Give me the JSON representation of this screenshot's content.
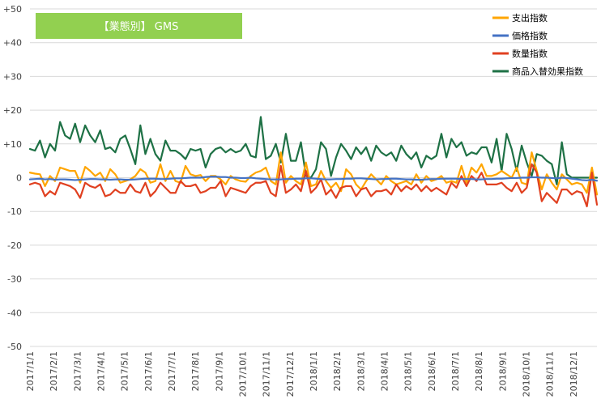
{
  "chart_data": {
    "type": "line",
    "title": "【業態別】 GMS",
    "title_bg": "#92d050",
    "ylim": [
      -50,
      50
    ],
    "y_ticks": [
      50,
      40,
      30,
      20,
      10,
      0,
      -10,
      -20,
      -30,
      -40,
      -50
    ],
    "y_tick_labels": [
      "+50",
      "+40",
      "+30",
      "+20",
      "+10",
      "0",
      "-10",
      "-20",
      "-30",
      "-40",
      "-50"
    ],
    "grid": true,
    "legend_position": "top-right",
    "x_tick_labels": [
      "2017/1/1",
      "2017/2/1",
      "2017/3/1",
      "2017/4/1",
      "2017/5/1",
      "2017/6/1",
      "2017/7/1",
      "2017/8/1",
      "2017/9/1",
      "2017/10/1",
      "2017/11/1",
      "2017/12/1",
      "2018/1/1",
      "2018/2/1",
      "2018/3/1",
      "2018/4/1",
      "2018/5/1",
      "2018/6/1",
      "2018/7/1",
      "2018/8/1",
      "2018/9/1",
      "2018/10/1",
      "2018/11/1",
      "2018/12/1"
    ],
    "series": [
      {
        "name": "支出指数",
        "color": "#ffa500",
        "values": [
          1.5,
          1.2,
          1.0,
          -2.5,
          0.5,
          -1.0,
          3.0,
          2.5,
          2.0,
          2.0,
          -1.5,
          3.2,
          2.0,
          0.5,
          1.5,
          -1.0,
          2.5,
          1.0,
          -1.5,
          -1.0,
          -0.5,
          0.5,
          2.5,
          1.5,
          -1.5,
          -1.0,
          4.0,
          -1.0,
          2.0,
          -1.0,
          -1.5,
          3.5,
          1.0,
          0.5,
          0.8,
          -1.0,
          0.5,
          0.5,
          -0.5,
          -2.0,
          0.5,
          -0.5,
          -1.0,
          -1.2,
          0.5,
          1.5,
          2.0,
          3.0,
          -1.0,
          -2.0,
          7.5,
          -1.5,
          0.5,
          -1.0,
          -2.0,
          4.5,
          -2.5,
          -2.0,
          2.0,
          -1.0,
          -3.0,
          -1.5,
          -4.0,
          2.5,
          1.0,
          -2.0,
          -3.5,
          -1.0,
          1.0,
          -0.5,
          -2.0,
          0.5,
          -1.0,
          -2.0,
          -1.5,
          -1.0,
          -2.0,
          1.0,
          -1.5,
          0.5,
          -1.0,
          -0.5,
          0.5,
          -1.5,
          -1.0,
          -1.5,
          3.5,
          -1.5,
          3.0,
          1.5,
          4.0,
          0.5,
          0.5,
          1.0,
          2.0,
          1.0,
          0.0,
          3.0,
          -1.5,
          -2.0,
          7.5,
          2.0,
          -3.5,
          1.0,
          -1.5,
          -3.5,
          1.0,
          -0.5,
          -2.0,
          -1.5,
          -2.0,
          -4.5,
          3.0,
          -5.0
        ],
        "dates_note": "weekly"
      },
      {
        "name": "価格指数",
        "color": "#4472c4",
        "values": [
          -0.5,
          -0.4,
          -0.3,
          -0.5,
          -0.4,
          -0.6,
          -0.5,
          -0.5,
          -0.6,
          -0.7,
          -0.6,
          -0.5,
          -0.4,
          -0.4,
          -0.5,
          -0.5,
          -0.6,
          -0.5,
          -0.5,
          -0.6,
          -0.6,
          -0.5,
          -0.4,
          -0.3,
          -0.3,
          -0.3,
          -0.4,
          -0.4,
          -0.3,
          -0.2,
          -0.2,
          -0.1,
          0.0,
          0.0,
          0.0,
          0.2,
          0.3,
          0.3,
          0.2,
          0.2,
          0.0,
          0.0,
          -0.1,
          -0.1,
          0.0,
          -0.2,
          -0.3,
          -0.4,
          -0.5,
          -0.5,
          -0.5,
          -0.4,
          -0.4,
          -0.3,
          -0.3,
          -0.2,
          -0.2,
          -0.3,
          -0.4,
          -0.5,
          -0.5,
          -0.4,
          -0.4,
          -0.3,
          -0.3,
          -0.2,
          -0.2,
          -0.3,
          -0.4,
          -0.5,
          -0.4,
          -0.4,
          -0.3,
          -0.3,
          -0.4,
          -0.5,
          -0.5,
          -0.6,
          -0.6,
          -0.5,
          -0.4,
          -0.4,
          -0.3,
          -0.3,
          -0.3,
          -0.3,
          -0.4,
          -0.4,
          -0.4,
          -0.5,
          -0.5,
          -0.4,
          -0.4,
          -0.3,
          -0.3,
          -0.2,
          -0.1,
          -0.1,
          0.0,
          0.0,
          0.1,
          0.1,
          0.0,
          0.0,
          -0.1,
          -0.2,
          0.0,
          -0.1,
          -0.3,
          -0.5,
          -0.7,
          -0.8,
          -0.6,
          -0.9
        ]
      },
      {
        "name": "数量指数",
        "color": "#e04020",
        "values": [
          -2.0,
          -1.5,
          -2.0,
          -5.5,
          -4.0,
          -5.0,
          -1.5,
          -2.0,
          -2.5,
          -3.5,
          -6.0,
          -1.5,
          -2.5,
          -3.0,
          -2.0,
          -5.5,
          -5.0,
          -3.5,
          -4.5,
          -4.5,
          -2.0,
          -4.0,
          -4.5,
          -1.5,
          -5.5,
          -4.0,
          -1.5,
          -3.0,
          -4.5,
          -4.5,
          -1.0,
          -2.5,
          -2.5,
          -2.0,
          -4.5,
          -4.0,
          -3.0,
          -3.0,
          -1.0,
          -5.5,
          -3.0,
          -3.5,
          -4.0,
          -4.5,
          -2.5,
          -1.5,
          -1.5,
          -1.0,
          -4.5,
          -5.5,
          3.5,
          -4.5,
          -3.5,
          -2.0,
          -4.0,
          2.0,
          -4.5,
          -3.0,
          -0.5,
          -5.0,
          -3.5,
          -6.0,
          -3.0,
          -2.5,
          -2.5,
          -5.5,
          -3.5,
          -3.0,
          -5.5,
          -4.0,
          -4.0,
          -3.5,
          -5.0,
          -2.0,
          -4.0,
          -2.5,
          -3.5,
          -2.0,
          -4.0,
          -2.5,
          -4.0,
          -3.0,
          -4.0,
          -5.0,
          -1.5,
          -3.0,
          0.5,
          -2.5,
          0.5,
          -1.0,
          1.5,
          -2.0,
          -2.0,
          -2.0,
          -1.5,
          -3.0,
          -4.0,
          -1.5,
          -4.5,
          -3.0,
          4.0,
          1.5,
          -7.0,
          -4.5,
          -6.0,
          -7.5,
          -3.5,
          -3.5,
          -5.0,
          -4.0,
          -4.5,
          -8.5,
          1.5,
          -8.0
        ]
      },
      {
        "name": "商品入替効果指数",
        "color": "#1e7145",
        "values": [
          8.5,
          8.0,
          11.0,
          6.0,
          10.0,
          8.0,
          16.5,
          12.5,
          11.5,
          16.0,
          10.5,
          15.5,
          12.5,
          10.5,
          14.0,
          8.5,
          9.0,
          7.5,
          11.5,
          12.5,
          8.5,
          4.0,
          15.5,
          7.0,
          11.5,
          7.0,
          5.0,
          11.0,
          8.0,
          8.0,
          7.0,
          5.5,
          8.5,
          8.0,
          8.5,
          3.0,
          7.0,
          8.5,
          9.0,
          7.5,
          8.5,
          7.5,
          8.0,
          10.0,
          6.5,
          6.0,
          18.0,
          5.5,
          6.5,
          10.0,
          4.5,
          13.0,
          5.0,
          5.0,
          10.5,
          0.5,
          0.0,
          2.5,
          10.5,
          8.5,
          0.5,
          6.0,
          10.0,
          8.0,
          5.5,
          9.0,
          7.0,
          9.0,
          5.0,
          9.5,
          7.5,
          6.5,
          7.5,
          5.0,
          9.5,
          7.0,
          5.5,
          7.5,
          3.0,
          6.5,
          5.5,
          6.5,
          13.0,
          6.0,
          11.5,
          9.0,
          10.5,
          6.5,
          7.5,
          7.0,
          9.0,
          9.0,
          4.5,
          11.5,
          2.0,
          13.0,
          8.5,
          2.0,
          9.5,
          4.5,
          0.5,
          7.0,
          6.5,
          5.0,
          4.0,
          -2.0,
          10.5,
          1.0,
          0.0,
          0.0,
          0.0,
          0.0,
          0.0,
          0.0
        ]
      }
    ]
  }
}
